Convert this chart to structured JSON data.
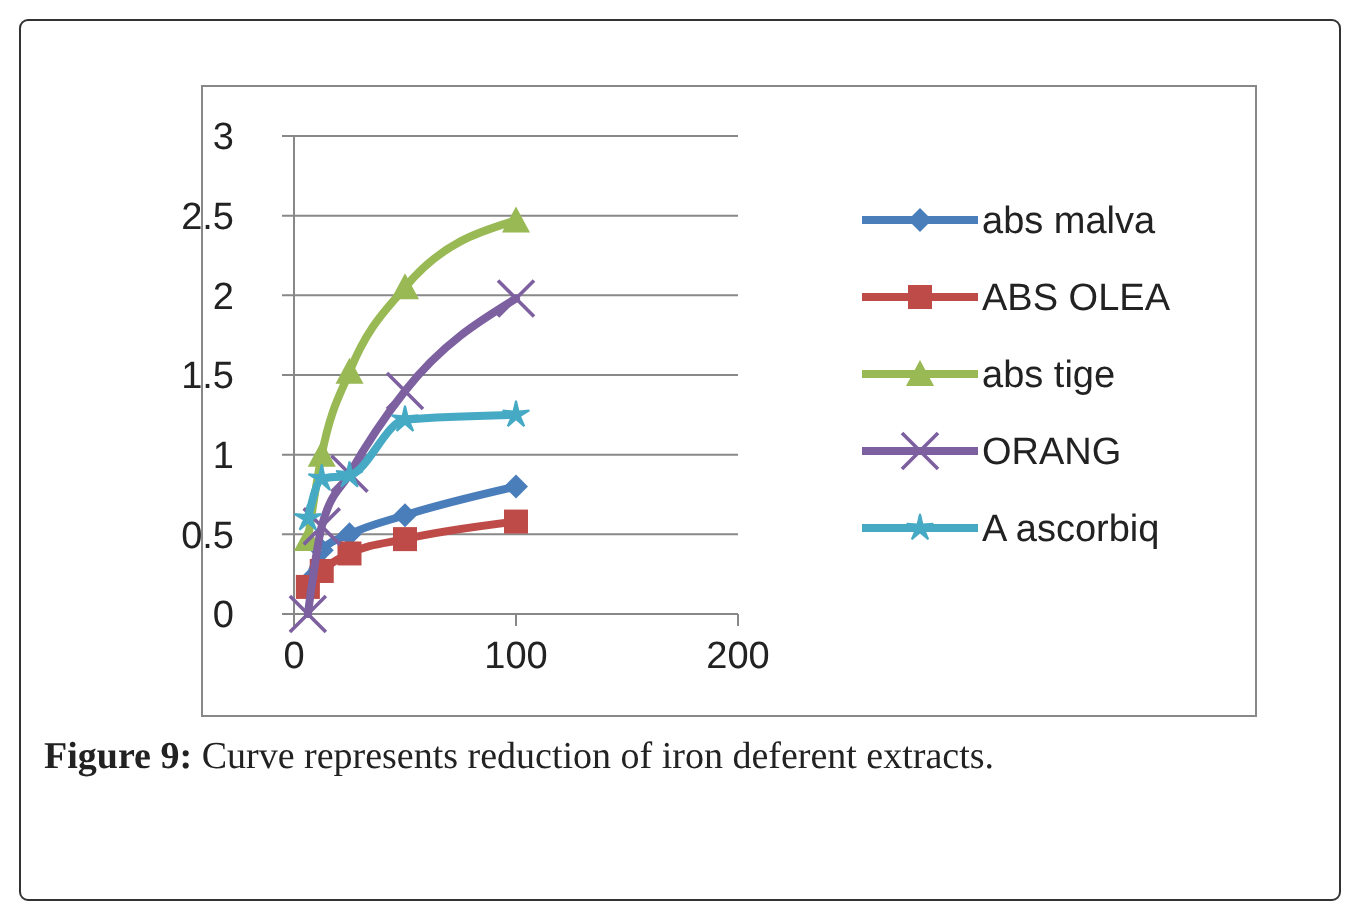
{
  "chart_data": {
    "type": "line",
    "x": [
      6.25,
      12.5,
      25,
      50,
      100
    ],
    "xlim": [
      0,
      200
    ],
    "xticks": [
      0,
      100,
      200
    ],
    "ylim": [
      0,
      3
    ],
    "yticks": [
      0,
      0.5,
      1,
      1.5,
      2,
      2.5,
      3
    ],
    "grid": "y",
    "legend": "right",
    "annotations": [
      "Figure 9: Curve represents reduction of iron deferent extracts."
    ],
    "series": [
      {
        "name": "abs malva",
        "color": "#4a7ebb",
        "marker": "diamond",
        "values": [
          0.2,
          0.4,
          0.5,
          0.62,
          0.8
        ]
      },
      {
        "name": "ABS OLEA",
        "color": "#be4b48",
        "marker": "square",
        "values": [
          0.17,
          0.27,
          0.38,
          0.47,
          0.58
        ]
      },
      {
        "name": "abs tige",
        "color": "#98b954",
        "marker": "triangle",
        "values": [
          0.47,
          1.0,
          1.52,
          2.05,
          2.47
        ]
      },
      {
        "name": "ORANG",
        "color": "#7d60a0",
        "marker": "cross",
        "values": [
          0.0,
          0.55,
          0.88,
          1.4,
          1.98
        ]
      },
      {
        "name": "A ascorbiq",
        "color": "#46aac5",
        "marker": "star",
        "values": [
          0.6,
          0.85,
          0.87,
          1.22,
          1.25
        ]
      }
    ]
  }
}
